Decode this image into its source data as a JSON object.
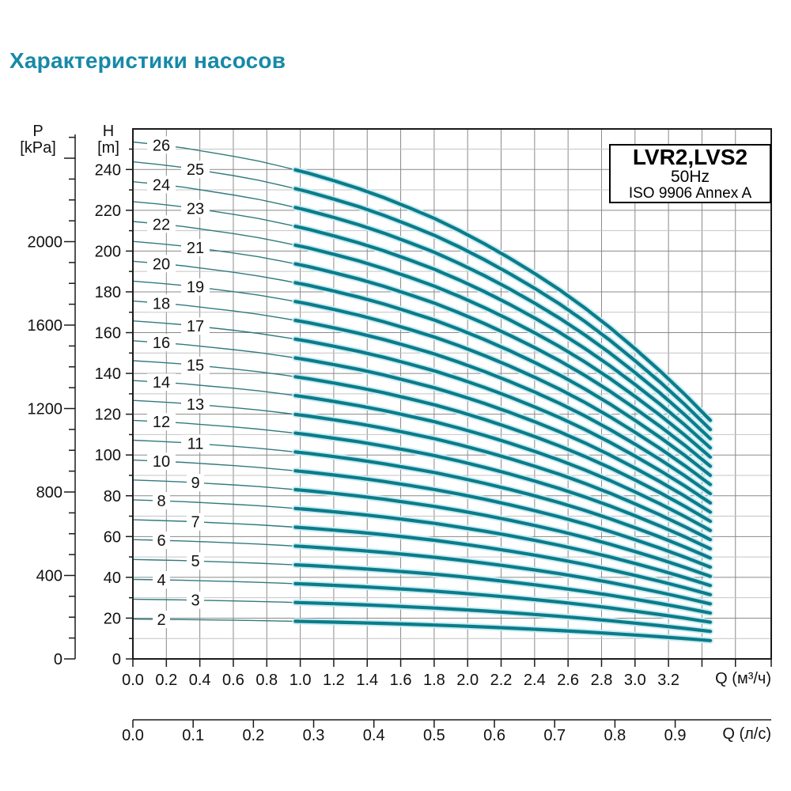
{
  "page": {
    "title": "Характеристики насосов",
    "title_color": "#1789a9"
  },
  "legend_box": {
    "model": "LVR2,LVS2",
    "frequency": "50Hz",
    "standard": "ISO 9906 Annex A"
  },
  "chart_data": {
    "type": "line",
    "title": "LVR2,LVS2",
    "subtitle": "50Hz",
    "note": "ISO 9906 Annex A",
    "x_axis_primary": {
      "label": "Q (м³/ч)",
      "tick_step": 0.2,
      "labeled_ticks": [
        "0.0",
        "0.2",
        "0.4",
        "0.6",
        "0.8",
        "1.0",
        "1.2",
        "1.4",
        "1.6",
        "1.8",
        "2.0",
        "2.2",
        "2.4",
        "2.6",
        "2.8",
        "3.0",
        "3.2"
      ],
      "unlabeled_ticks": [
        3.4,
        3.6,
        3.8
      ],
      "range": [
        0,
        3.81
      ]
    },
    "x_axis_secondary": {
      "label": "Q (л/с)",
      "tick_step": 0.1,
      "labeled_ticks": [
        "0.0",
        "0.1",
        "0.2",
        "0.3",
        "0.4",
        "0.5",
        "0.6",
        "0.7",
        "0.8",
        "0.9"
      ]
    },
    "y_axis_primary": {
      "label": "H",
      "unit": "[m]",
      "labeled_ticks": [
        0,
        20,
        40,
        60,
        80,
        100,
        120,
        140,
        160,
        180,
        200,
        220,
        240
      ],
      "minor_step": 10,
      "minor_max": 250,
      "range": [
        0,
        260
      ]
    },
    "y_axis_secondary": {
      "label": "P",
      "unit": "[kPa]",
      "labeled_ticks": [
        0,
        400,
        800,
        1200,
        1600,
        2000
      ],
      "minor_step": 100,
      "minor_max": 2500,
      "range": [
        0,
        2540
      ]
    },
    "curves": {
      "stage_numbers": [
        2,
        3,
        4,
        5,
        6,
        7,
        8,
        9,
        10,
        11,
        12,
        13,
        14,
        15,
        16,
        17,
        18,
        19,
        20,
        21,
        22,
        23,
        24,
        25,
        26
      ],
      "head_rule": "H(Q) = stages × per_stage_head"
    },
    "per_stage_head": {
      "q_m3h": [
        0.0,
        0.15,
        0.3,
        0.45,
        0.6,
        0.75,
        0.9,
        1.05,
        1.2,
        1.35,
        1.5,
        1.65,
        1.8,
        1.95,
        2.1,
        2.25,
        2.4,
        2.55,
        2.7,
        2.85,
        3.0,
        3.15,
        3.3,
        3.45
      ],
      "h_m": [
        9.75,
        9.7,
        9.64,
        9.56,
        9.48,
        9.39,
        9.28,
        9.16,
        9.02,
        8.87,
        8.7,
        8.51,
        8.31,
        8.08,
        7.83,
        7.56,
        7.27,
        6.96,
        6.62,
        6.25,
        5.85,
        5.43,
        4.98,
        4.5
      ]
    },
    "duty_range_q": [
      0.97,
      3.45
    ],
    "colors": {
      "curve": "#0b7c8a",
      "curve_halo": "#c8ebf1",
      "curve_thin": "#317a7f",
      "grid_major": "#8a8a8a",
      "grid_minor": "#c4c4c4",
      "axis": "#1a1a1a",
      "text": "#111111"
    }
  }
}
